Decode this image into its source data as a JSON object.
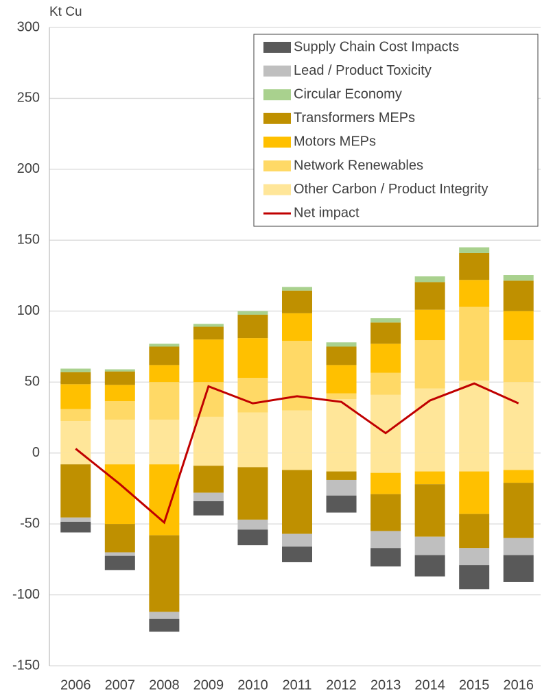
{
  "chart_data": {
    "type": "stacked_bar_line",
    "y_label": "Kt Cu",
    "categories": [
      "2006",
      "2007",
      "2008",
      "2009",
      "2010",
      "2011",
      "2012",
      "2013",
      "2014",
      "2015",
      "2016"
    ],
    "ylim": [
      -150,
      300
    ],
    "yticks": [
      -150,
      -100,
      -50,
      0,
      50,
      100,
      150,
      200,
      250,
      300
    ],
    "grid": true,
    "legend": "top-right",
    "series": [
      {
        "name": "Supply Chain Cost Impacts",
        "color": "#595959",
        "values": [
          null,
          null,
          null,
          null,
          null,
          null,
          null,
          null,
          null,
          null,
          null
        ],
        "negative_values": [
          -7.5,
          -10,
          -9,
          -10,
          -11,
          -11,
          -12,
          -13,
          -15,
          -17,
          -19
        ]
      },
      {
        "name": "Lead / Product Toxicity",
        "color": "#bfbfbf",
        "values": [
          null,
          null,
          null,
          null,
          null,
          null,
          null,
          null,
          null,
          null,
          null
        ],
        "negative_values": [
          -3,
          -2.5,
          -5,
          -6,
          -7,
          -9,
          -11,
          -12,
          -13,
          -12,
          -12
        ]
      },
      {
        "name": "Circular Economy",
        "color": "#a9d18e",
        "values": [
          2.5,
          1.5,
          2,
          2,
          2.5,
          2.5,
          3,
          3,
          4,
          4,
          4
        ],
        "negative_values": [
          null,
          null,
          null,
          null,
          null,
          null,
          null,
          null,
          null,
          null,
          null
        ]
      },
      {
        "name": "Transformers MEPs",
        "color": "#bf9000",
        "values": [
          8.5,
          9.5,
          13,
          9,
          16.5,
          16,
          13,
          15,
          19.5,
          19,
          21.5
        ],
        "negative_values": [
          -37.5,
          -20,
          -54,
          -19,
          -37,
          -45,
          -6,
          -26,
          -37,
          -24,
          -39
        ]
      },
      {
        "name": "Motors MEPs",
        "color": "#ffc000",
        "values": [
          17.5,
          11.5,
          12,
          30,
          28,
          19.5,
          20,
          20.5,
          21.5,
          19,
          20.5
        ],
        "negative_values": [
          null,
          -42,
          -50,
          null,
          null,
          null,
          null,
          -15,
          -9,
          -30,
          -9
        ]
      },
      {
        "name": "Network Renewables",
        "color": "#ffd966",
        "values": [
          8.5,
          13,
          26.5,
          24.5,
          24.5,
          49,
          4,
          15.5,
          34,
          52,
          29.5
        ],
        "negative_values": [
          null,
          null,
          null,
          null,
          null,
          null,
          null,
          null,
          null,
          null,
          null
        ]
      },
      {
        "name": "Other Carbon / Product Integrity",
        "color": "#ffe699",
        "values": [
          22.5,
          23.5,
          23.5,
          25.5,
          28.5,
          30,
          38,
          41,
          45.5,
          51,
          50
        ],
        "negative_values": [
          -8,
          -8,
          -8,
          -9,
          -10,
          -12,
          -13,
          -14,
          -13,
          -13,
          -12
        ]
      }
    ],
    "line": {
      "name": "Net impact",
      "color": "#c00000",
      "values": [
        3,
        -22,
        -49,
        47,
        35,
        40,
        36,
        14,
        37,
        49,
        35
      ]
    }
  }
}
